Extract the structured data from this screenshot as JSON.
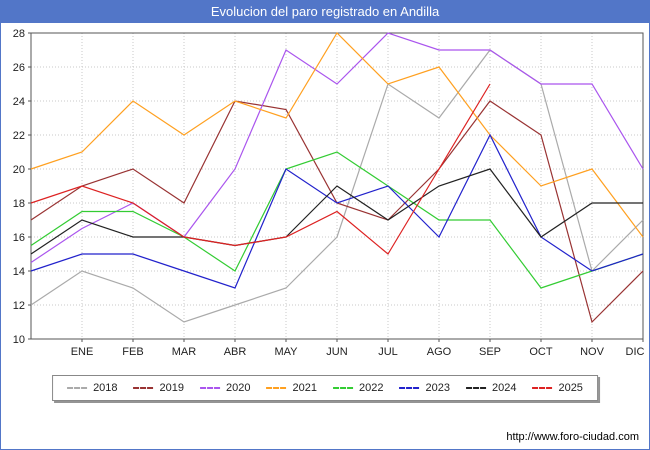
{
  "window": {
    "title": "Evolucion del paro registrado en Andilla"
  },
  "footer": {
    "url": "http://www.foro-ciudad.com"
  },
  "colors": {
    "titlebar": "#5276c8",
    "frame_border": "#5276c8",
    "grid": "#c9c9c9",
    "axis": "#555555"
  },
  "chart_data": {
    "type": "line",
    "title": "Evolucion del paro registrado en Andilla",
    "xlabel": "",
    "ylabel": "",
    "ylim": [
      10,
      28
    ],
    "ytick_step": 2,
    "grid": true,
    "legend_position": "bottom",
    "x_labels": [
      "ENE",
      "FEB",
      "MAR",
      "ABR",
      "MAY",
      "JUN",
      "JUL",
      "AGO",
      "SEP",
      "OCT",
      "NOV",
      "DIC"
    ],
    "x_note": "first value of each series is drawn at the left plot edge, subsequent values fall on the monthly gridlines ENE..DIC",
    "series": [
      {
        "name": "2018",
        "color": "#aaaaaa",
        "values": [
          12,
          14,
          13,
          11,
          12,
          13,
          16,
          25,
          23,
          27,
          25,
          14,
          17
        ]
      },
      {
        "name": "2019",
        "color": "#993333",
        "values": [
          17,
          19,
          20,
          18,
          24,
          23.5,
          18,
          17,
          20,
          24,
          22,
          11,
          14
        ]
      },
      {
        "name": "2020",
        "color": "#aa55ee",
        "values": [
          14.5,
          16.5,
          18,
          16,
          20,
          27,
          25,
          28,
          27,
          27,
          25,
          25,
          20
        ]
      },
      {
        "name": "2021",
        "color": "#ffa020",
        "values": [
          20,
          21,
          24,
          22,
          24,
          23,
          28,
          25,
          26,
          22,
          19,
          20,
          16
        ]
      },
      {
        "name": "2022",
        "color": "#33cc33",
        "values": [
          15.5,
          17.5,
          17.5,
          16,
          14,
          20,
          21,
          19,
          17,
          17,
          13,
          14,
          15
        ]
      },
      {
        "name": "2023",
        "color": "#2222cc",
        "values": [
          14,
          15,
          15,
          14,
          13,
          20,
          18,
          19,
          16,
          22,
          16,
          14,
          15
        ]
      },
      {
        "name": "2024",
        "color": "#222222",
        "values": [
          15,
          17,
          16,
          16,
          15.5,
          16,
          19,
          17,
          19,
          20,
          16,
          18,
          18
        ]
      },
      {
        "name": "2025",
        "color": "#dd2222",
        "values": [
          18,
          19,
          18,
          16,
          15.5,
          16,
          17.5,
          15,
          20,
          25
        ]
      }
    ]
  }
}
